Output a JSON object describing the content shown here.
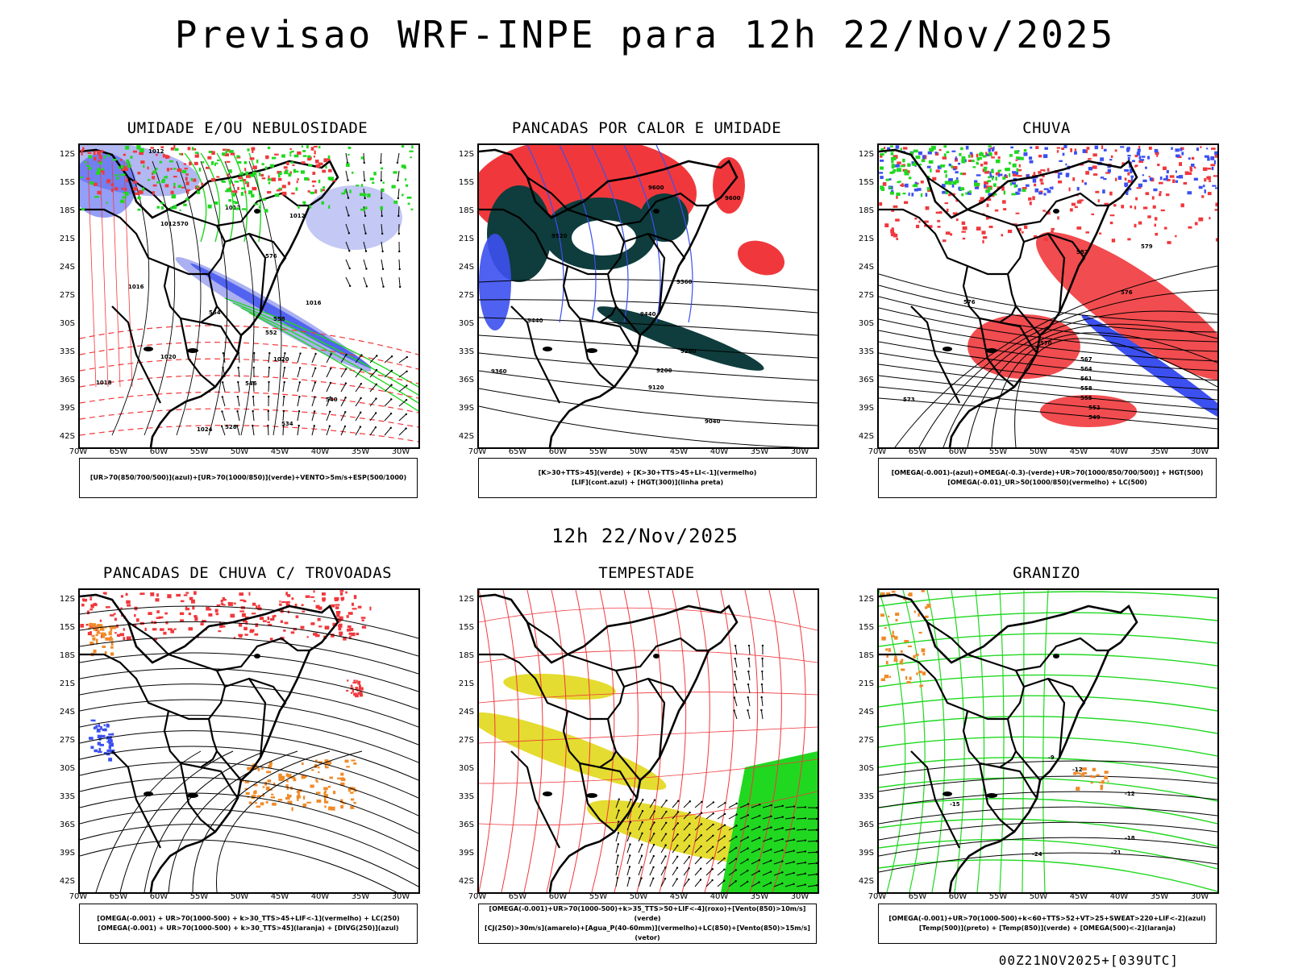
{
  "header": {
    "title": "Previsao WRF-INPE  para 12h 22/Nov/2025"
  },
  "middle_label": "12h 22/Nov/2025",
  "footer": "00Z21NOV2025+[039UTC]",
  "axes": {
    "lat_labels": [
      "12S",
      "15S",
      "18S",
      "21S",
      "24S",
      "27S",
      "30S",
      "33S",
      "36S",
      "39S",
      "42S"
    ],
    "lon_labels": [
      "70W",
      "65W",
      "60W",
      "55W",
      "50W",
      "45W",
      "40W",
      "35W",
      "30W"
    ]
  },
  "panels": [
    {
      "title": "UMIDADE E/OU NEBULOSIDADE",
      "legend": [
        "[UR>70(850/700/500)](azul)+[UR>70(1000/850)](verde)+VENTO>5m/s+ESP(500/1000)"
      ]
    },
    {
      "title": "PANCADAS POR CALOR E UMIDADE",
      "legend": [
        "[K>30+TTS>45](verde) + [K>30+TTS>45+LI<-1](vermelho)",
        "[LIF](cont.azul) + [HGT(300)](linha preta)"
      ]
    },
    {
      "title": "CHUVA",
      "legend": [
        "[OMEGA(-0.001)-(azul)+OMEGA(-0.3)-(verde)+UR>70(1000/850/700/500)] + HGT(500)",
        "[OMEGA(-0.01)_UR>50(1000/850)(vermelho) + LC(500)"
      ]
    },
    {
      "title": "PANCADAS DE CHUVA C/ TROVOADAS",
      "legend": [
        "[OMEGA(-0.001) + UR>70(1000-500) + k>30_TTS>45+LIF<-1](vermelho) + LC(250)",
        "[OMEGA(-0.001) + UR>70(1000-500) + k>30_TTS>45](laranja) + [DIVG(250)](azul)"
      ]
    },
    {
      "title": "TEMPESTADE",
      "legend": [
        "[OMEGA(-0.001)+UR>70(1000-500)+k>35_TTS>50+LIF<-4](roxo)+[Vento(850)>10m/s](verde)",
        "[CJ(250)>30m/s](amarelo)+[Agua_P(40-60mm)](vermelho)+LC(850)+[Vento(850)>15m/s](vetor)"
      ]
    },
    {
      "title": "GRANIZO",
      "legend": [
        "[OMEGA(-0.001)+UR>70(1000-500)+k<60+TTS>52+VT>25+SWEAT>220+LIF<-2](azul)",
        "[Temp(500)](preto) + [Temp(850)](verde) + [OMEGA(500)<-2](laranja)"
      ]
    }
  ],
  "contour_labels": {
    "p1": [
      "1012",
      "1012",
      "1012",
      "1012",
      "1016",
      "1016",
      "1020",
      "1020",
      "1018",
      "1024",
      "570",
      "576",
      "564",
      "558",
      "552",
      "546",
      "540",
      "534",
      "528"
    ],
    "p2": [
      "9600",
      "9600",
      "9520",
      "9440",
      "9440",
      "9360",
      "9360",
      "9280",
      "9200",
      "9120",
      "9040"
    ],
    "p3": [
      "582",
      "576",
      "573",
      "570",
      "567",
      "564",
      "561",
      "558",
      "555",
      "552",
      "549",
      "579",
      "576"
    ],
    "p6": [
      "-12",
      "-15",
      "-18",
      "-21",
      "-24",
      "-12",
      "-9"
    ]
  },
  "colors": {
    "red": "#f0383c",
    "blue": "#3c50f0",
    "green": "#20d820",
    "lavender": "#aab0f0",
    "darkgreen": "#0f3c3c",
    "yellow": "#e4dc30",
    "orange": "#f08a28"
  }
}
